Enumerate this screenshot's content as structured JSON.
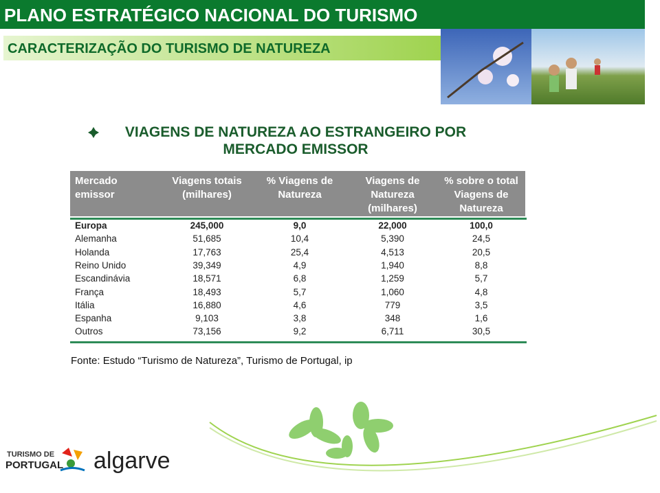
{
  "header": {
    "title": "PLANO ESTRATÉGICO NACIONAL DO TURISMO",
    "subtitle": "CARACTERIZAÇÃO DO TURISMO DE NATUREZA"
  },
  "section": {
    "heading_lines": [
      "VIAGENS DE NATUREZA AO ESTRANGEIRO POR",
      "MERCADO EMISSOR"
    ]
  },
  "table": {
    "headers": [
      [
        "Mercado",
        "emissor"
      ],
      [
        "Viagens totais",
        "(milhares)"
      ],
      [
        "% Viagens de",
        "Natureza"
      ],
      [
        "Viagens de",
        "Natureza",
        "(milhares)"
      ],
      [
        "% sobre o total",
        "Viagens de",
        "Natureza"
      ]
    ],
    "rows": [
      [
        "Europa",
        "245,000",
        "9,0",
        "22,000",
        "100,0"
      ],
      [
        "Alemanha",
        "51,685",
        "10,4",
        "5,390",
        "24,5"
      ],
      [
        "Holanda",
        "17,763",
        "25,4",
        "4,513",
        "20,5"
      ],
      [
        "Reino Unido",
        "39,349",
        "4,9",
        "1,940",
        "8,8"
      ],
      [
        "Escandinávia",
        "18,571",
        "6,8",
        "1,259",
        "5,7"
      ],
      [
        "França",
        "18,493",
        "5,7",
        "1,060",
        "4,8"
      ],
      [
        "Itália",
        "16,880",
        "4,6",
        "779",
        "3,5"
      ],
      [
        "Espanha",
        "9,103",
        "3,8",
        "348",
        "1,6"
      ],
      [
        "Outros",
        "73,156",
        "9,2",
        "6,711",
        "30,5"
      ]
    ]
  },
  "source": "Fonte: Estudo “Turismo de Natureza”, Turismo de Portugal, ip",
  "footer": {
    "logo_line1": "TURISMO DE",
    "logo_line2": "PORTUGAL",
    "region": "algarve"
  }
}
